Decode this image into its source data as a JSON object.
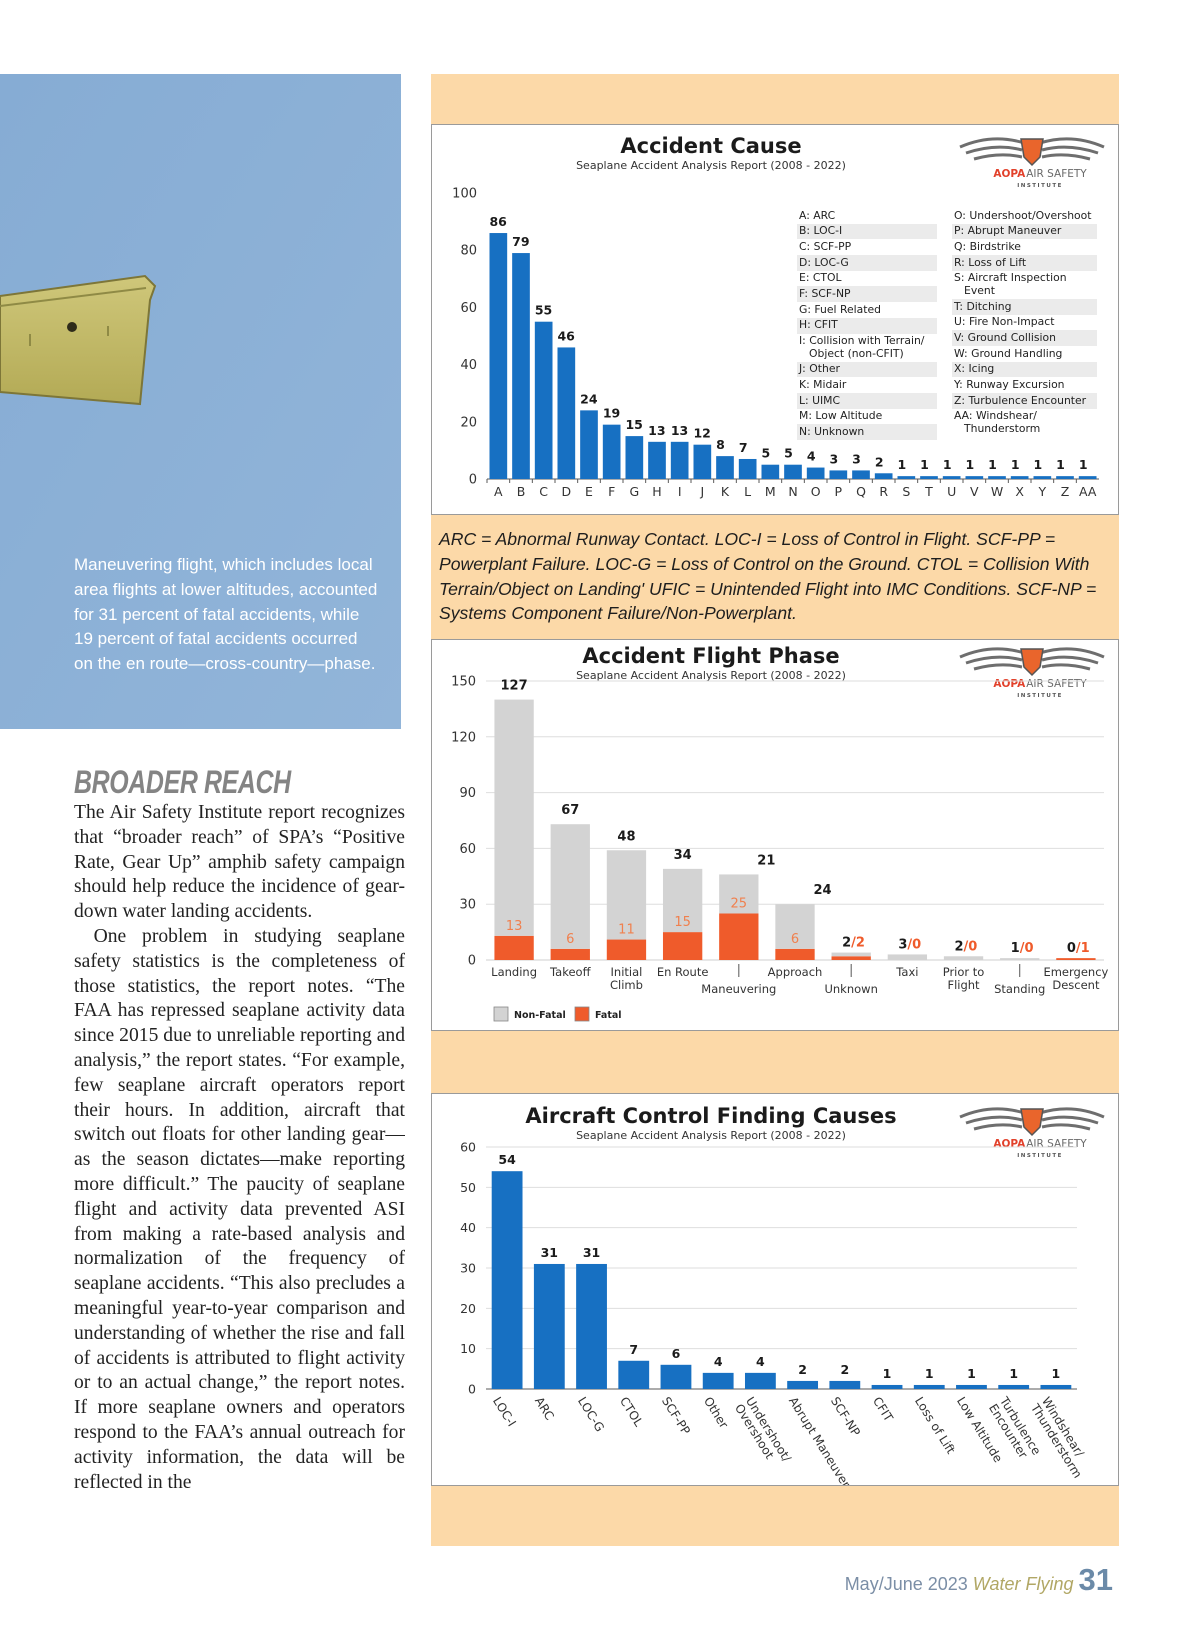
{
  "photo": {
    "caption": "Maneuvering flight, which includes local area flights at lower altitudes, accounted for 31 percent of fatal accidents, while 19 percent of fatal accidents occurred on the en route—cross-country—phase."
  },
  "article": {
    "heading": "BROADER REACH",
    "paragraphs": [
      "The Air Safety Institute report recognizes that “broader reach” of SPA’s “Positive Rate, Gear Up” amphib safety campaign should help reduce the incidence of gear-down water landing accidents.",
      "One problem in studying seaplane safety statistics is the completeness of those statistics, the report notes. “The FAA has repressed seaplane activity data since 2015 due to unreliable reporting and analysis,” the report states. “For example, few seaplane aircraft operators report their hours. In addition, aircraft that switch out floats for other landing gear—as the season dictates—make reporting more difficult.” The paucity of seaplane flight and activity data prevented ASI from making a rate-based analysis and normalization of the frequency of seaplane accidents. “This also precludes a meaningful year-to-year comparison and understanding of whether the rise and fall of accidents is attributed to flight activity or to an actual change,” the report notes. If more seaplane owners and operators respond to the FAA’s annual outreach for activity information, the data will be reflected in the"
    ]
  },
  "logo": {
    "brand": "AOPA",
    "name": "AIR SAFETY",
    "sub": "INSTITUTE"
  },
  "chart_data": [
    {
      "type": "bar",
      "title": "Accident Cause",
      "subtitle": "Seaplane Accident Analysis Report (2008 - 2022)",
      "categories": [
        "A",
        "B",
        "C",
        "D",
        "E",
        "F",
        "G",
        "H",
        "I",
        "J",
        "K",
        "L",
        "M",
        "N",
        "O",
        "P",
        "Q",
        "R",
        "S",
        "T",
        "U",
        "V",
        "W",
        "X",
        "Y",
        "Z",
        "AA"
      ],
      "values": [
        86,
        79,
        55,
        46,
        24,
        19,
        15,
        13,
        13,
        12,
        8,
        7,
        5,
        5,
        4,
        3,
        3,
        2,
        1,
        1,
        1,
        1,
        1,
        1,
        1,
        1,
        1
      ],
      "color": "#1770c2",
      "ylim": [
        0,
        100
      ],
      "yticks": [
        0,
        20,
        40,
        60,
        80,
        100
      ],
      "grid": false,
      "key": [
        [
          "A: ARC",
          "B: LOC-I",
          "C: SCF-PP",
          "D: LOC-G",
          "E: CTOL",
          "F: SCF-NP",
          "G: Fuel Related",
          "H: CFIT",
          "I: Collision with Terrain/\nObject (non-CFIT)",
          "J: Other",
          "K: Midair",
          "L: UIMC",
          "M: Low Altitude",
          "N: Unknown"
        ],
        [
          "O: Undershoot/Overshoot",
          "P: Abrupt Maneuver",
          "Q: Birdstrike",
          "R: Loss of Lift",
          "S: Aircraft Inspection\nEvent",
          "T: Ditching",
          "U: Fire Non-Impact",
          "V: Ground Collision",
          "W: Ground Handling",
          "X: Icing",
          "Y: Runway Excursion",
          "Z: Turbulence Encounter",
          "AA: Windshear/\nThunderstorm"
        ]
      ]
    },
    {
      "type": "stacked_bar",
      "title": "Accident Flight Phase",
      "subtitle": "Seaplane Accident Analysis Report (2008 - 2022)",
      "categories": [
        "Landing",
        "Takeoff",
        "Initial\nClimb",
        "En Route",
        "Maneuvering",
        "Approach",
        "Unknown",
        "Taxi",
        "Prior to\nFlight",
        "Standing",
        "Emergency\nDescent"
      ],
      "series": [
        {
          "name": "Non-Fatal",
          "color": "#d3d3d3",
          "values": [
            127,
            67,
            48,
            34,
            21,
            24,
            2,
            3,
            2,
            1,
            0
          ]
        },
        {
          "name": "Fatal",
          "color": "#ef5b2b",
          "values": [
            13,
            6,
            11,
            15,
            25,
            6,
            2,
            0,
            0,
            0,
            1
          ],
          "value_labels": [
            "13",
            "6",
            "11",
            "15",
            "25",
            "6",
            "/2",
            "/0",
            "/0",
            "/0",
            "/1"
          ]
        }
      ],
      "ylim": [
        0,
        150
      ],
      "yticks": [
        0,
        30,
        60,
        90,
        120,
        150
      ],
      "grid": true,
      "legend": "bottom-left"
    },
    {
      "type": "bar",
      "title": "Aircraft Control Finding Causes",
      "subtitle": "Seaplane Accident Analysis Report (2008 - 2022)",
      "categories": [
        "LOC-I",
        "ARC",
        "LOC-G",
        "CTOL",
        "SCF-PP",
        "Other",
        "Undershoot/\nOvershoot",
        "Abrupt Maneuver",
        "SCF-NP",
        "CFIT",
        "Loss of Lift",
        "Low Altitude",
        "Turbulence\nEncounter",
        "Windshear/\nThunderstorm"
      ],
      "values": [
        54,
        31,
        31,
        7,
        6,
        4,
        4,
        2,
        2,
        1,
        1,
        1,
        1,
        1
      ],
      "color": "#1770c2",
      "ylim": [
        0,
        60
      ],
      "yticks": [
        0,
        10,
        20,
        30,
        40,
        50,
        60
      ],
      "grid": true
    }
  ],
  "chart_note": "ARC = Abnormal Runway Contact. LOC-I = Loss of Control in Flight. SCF-PP = Powerplant Failure. LOC-G = Loss of Control on the Ground. CTOL = Collision With Terrain/Object on Landing' UFIC = Unintended Flight into IMC Conditions. SCF-NP = Systems Component Failure/Non-Powerplant.",
  "footer": {
    "issue": "May/June 2023",
    "magazine": "Water Flying",
    "page": 31
  }
}
